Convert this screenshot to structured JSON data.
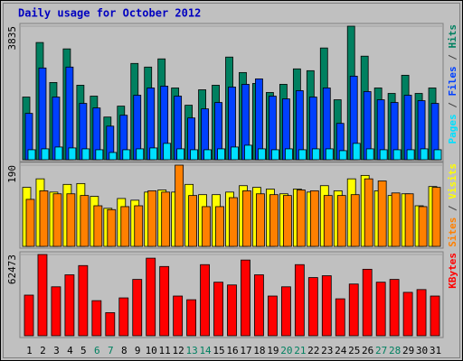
{
  "chart_data": [
    {
      "type": "bar",
      "title": "Daily usage for October 2012",
      "title_color": "#0000c0",
      "ylim": [
        0,
        3835
      ],
      "yticks": [
        3835
      ],
      "legend_separator": " / ",
      "series": [
        {
          "name": "Hits",
          "color": "#008060",
          "values": [
            1800,
            3366,
            2218,
            3183,
            2139,
            1826,
            1226,
            1539,
            2765,
            2661,
            2896,
            2061,
            1565,
            2009,
            2139,
            2948,
            2504,
            2191,
            1931,
            2165,
            2609,
            2557,
            3209,
            1722,
            3835,
            2974,
            2061,
            1904,
            2426,
            1904,
            2061
          ]
        },
        {
          "name": "Files",
          "color": "#0040ff",
          "values": [
            1331,
            2635,
            1800,
            2661,
            1618,
            1487,
            965,
            1278,
            1852,
            2061,
            2113,
            1826,
            1200,
            1461,
            1644,
            2087,
            2165,
            2322,
            1826,
            1748,
            1983,
            1800,
            2061,
            1044,
            2400,
            1957,
            1722,
            1644,
            1852,
            1696,
            1618
          ]
        },
        {
          "name": "Pages",
          "color": "#00e0ff",
          "values": [
            287,
            313,
            365,
            339,
            313,
            287,
            209,
            287,
            313,
            339,
            470,
            313,
            287,
            287,
            313,
            365,
            417,
            313,
            287,
            313,
            287,
            313,
            313,
            261,
            470,
            313,
            287,
            287,
            287,
            313,
            287
          ]
        }
      ]
    },
    {
      "type": "bar",
      "ylim": [
        0,
        190
      ],
      "yticks": [
        190
      ],
      "legend_separator": " / ",
      "series": [
        {
          "name": "Visits",
          "color": "#ffff00",
          "values": [
            138,
            158,
            127,
            145,
            147,
            117,
            89,
            112,
            108,
            127,
            132,
            127,
            145,
            121,
            121,
            127,
            142,
            138,
            134,
            123,
            134,
            127,
            142,
            130,
            158,
            166,
            130,
            119,
            123,
            95,
            140
          ]
        },
        {
          "name": "Sites",
          "color": "#ff8000",
          "values": [
            110,
            130,
            123,
            123,
            119,
            95,
            86,
            93,
            95,
            130,
            127,
            190,
            119,
            93,
            93,
            114,
            130,
            123,
            121,
            119,
            132,
            130,
            119,
            119,
            121,
            158,
            153,
            125,
            123,
            93,
            138
          ]
        }
      ]
    },
    {
      "type": "bar",
      "ylim": [
        0,
        62473
      ],
      "yticks": [
        62473
      ],
      "categories": [
        "1",
        "2",
        "3",
        "4",
        "5",
        "6",
        "7",
        "8",
        "9",
        "10",
        "11",
        "12",
        "13",
        "14",
        "15",
        "16",
        "17",
        "18",
        "19",
        "20",
        "21",
        "22",
        "23",
        "24",
        "25",
        "26",
        "27",
        "28",
        "29",
        "30",
        "31"
      ],
      "category_colors": [
        "#000000",
        "#000000",
        "#000000",
        "#000000",
        "#000000",
        "#008060",
        "#008060",
        "#000000",
        "#000000",
        "#000000",
        "#000000",
        "#000000",
        "#008060",
        "#008060",
        "#000000",
        "#000000",
        "#000000",
        "#000000",
        "#000000",
        "#008060",
        "#008060",
        "#000000",
        "#000000",
        "#000000",
        "#000000",
        "#000000",
        "#008060",
        "#008060",
        "#000000",
        "#000000",
        "#000000"
      ],
      "series": [
        {
          "name": "KBytes",
          "color": "#ff0000",
          "values": [
            31240,
            62473,
            37630,
            46860,
            53960,
            26980,
            17750,
            29110,
            43310,
            59640,
            53250,
            30530,
            27690,
            54670,
            41180,
            39050,
            58220,
            46860,
            30530,
            37630,
            54670,
            44730,
            46150,
            28400,
            39760,
            51120,
            41180,
            43310,
            33370,
            35500,
            30530
          ]
        }
      ]
    }
  ]
}
